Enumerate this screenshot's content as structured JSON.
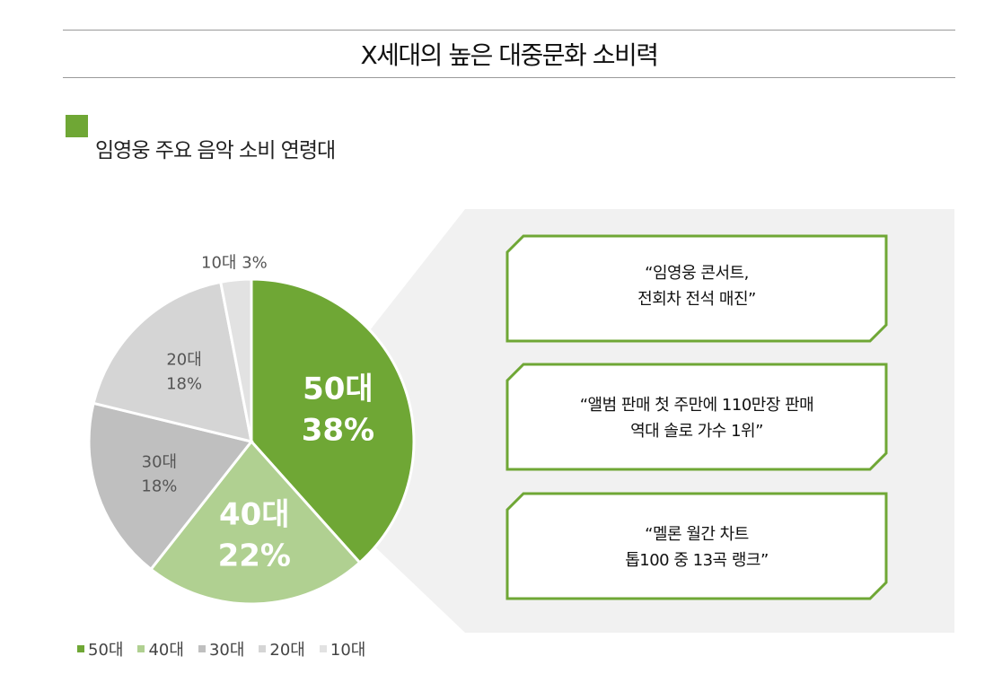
{
  "header": {
    "title": "X세대의 높은 대중문화 소비력",
    "subtitle": "임영웅 주요 음악 소비 연령대"
  },
  "chart_data": {
    "type": "pie",
    "title": "임영웅 주요 음악 소비 연령대",
    "categories": [
      "50대",
      "40대",
      "30대",
      "20대",
      "10대"
    ],
    "values": [
      38,
      22,
      18,
      18,
      3
    ],
    "data_labels": [
      [
        "50대",
        "38%"
      ],
      [
        "40대",
        "22%"
      ],
      [
        "30대",
        "18%"
      ],
      [
        "20대",
        "18%"
      ],
      [
        "10대 3%"
      ]
    ],
    "colors": [
      "#6fa735",
      "#b0d091",
      "#bfbfbf",
      "#d5d5d5",
      "#e2e2e2"
    ],
    "legend": {
      "position": "bottom-left",
      "entries": [
        "50대",
        "40대",
        "30대",
        "20대",
        "10대"
      ]
    }
  },
  "callouts": [
    {
      "line1": "“임영웅 콘서트,",
      "line2": "전회차 전석 매진”"
    },
    {
      "line1": "“앨범 판매 첫 주만에 110만장 판매",
      "line2": "역대 솔로 가수 1위”"
    },
    {
      "line1": "“멜론 월간 차트",
      "line2": "톱100 중 13곡 랭크”"
    }
  ],
  "colors": {
    "accent": "#6fa735",
    "panel": "#f1f1f1",
    "rule": "#9a9a9a"
  }
}
